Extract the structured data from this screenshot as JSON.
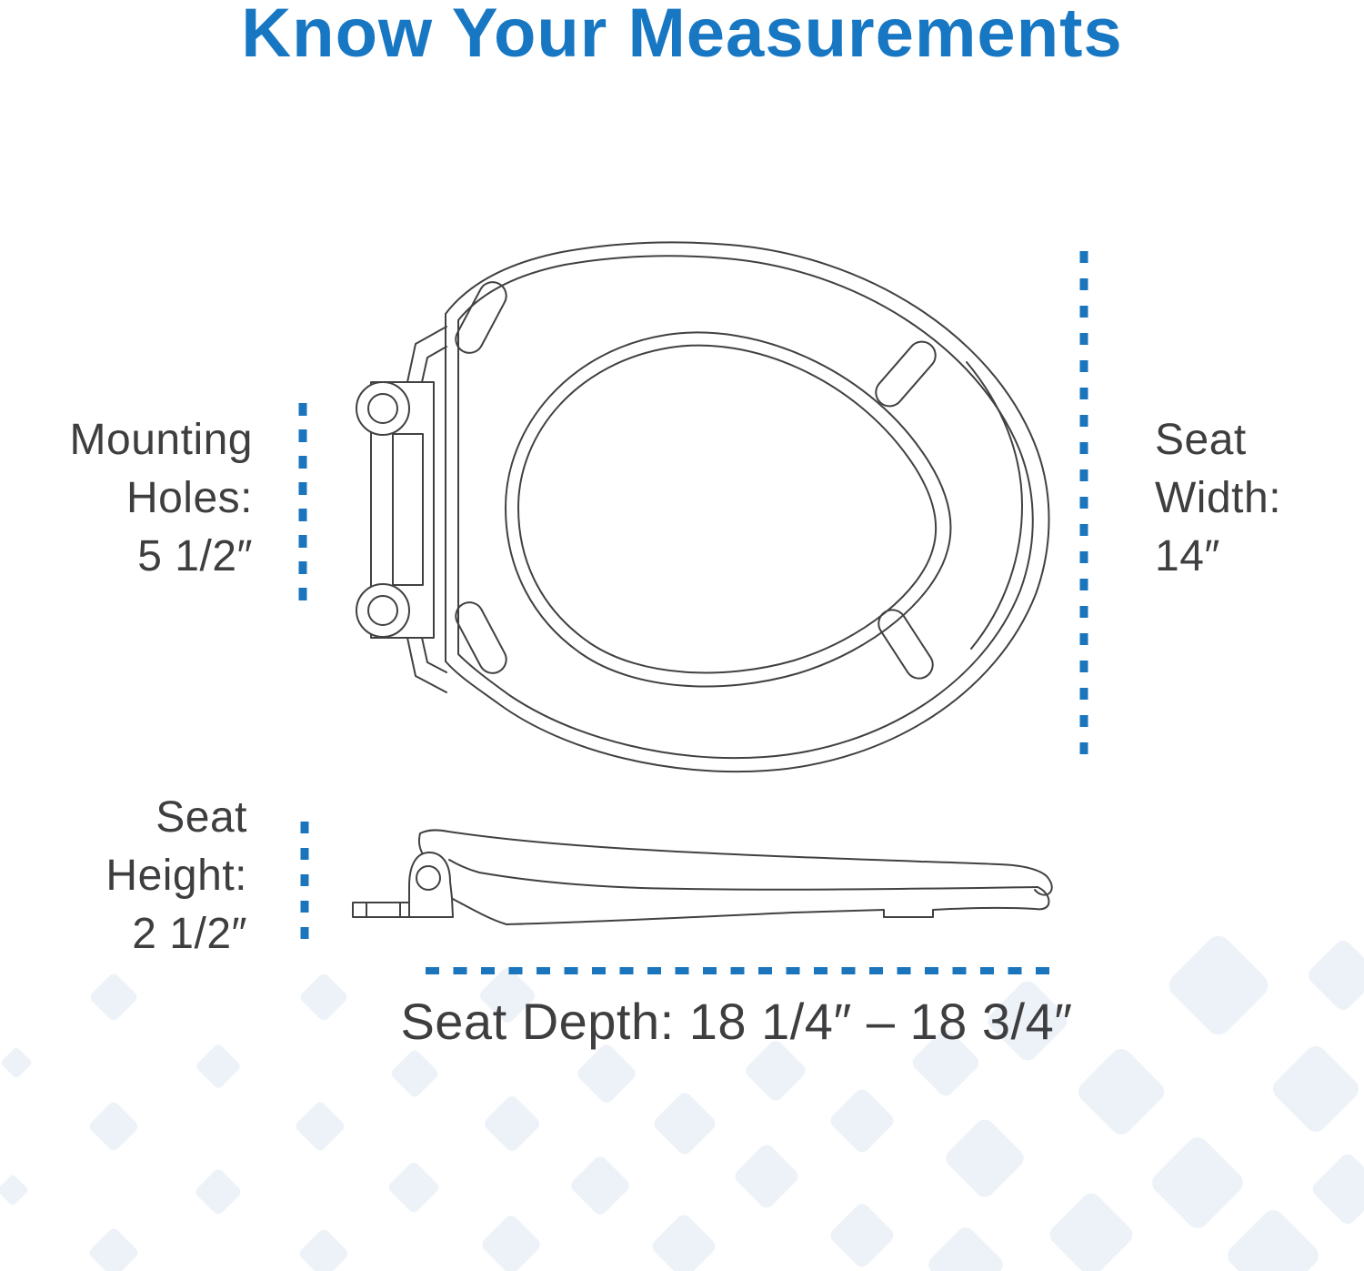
{
  "page": {
    "title": "Know Your Measurements"
  },
  "colors": {
    "title_blue": "#1777C3",
    "dimension_blue": "#1B75BC",
    "label_gray": "#3E3E40",
    "line_gray": "#414042",
    "diamond": "#EDF2F8"
  },
  "measurements": {
    "mounting_holes": {
      "label": "Mounting Holes:",
      "value": "5 1/2″",
      "lines": [
        "Mounting",
        "Holes:",
        "5 1/2″"
      ]
    },
    "seat_width": {
      "label": "Seat Width:",
      "value": "14″",
      "lines": [
        "Seat",
        "Width:",
        "14″"
      ]
    },
    "seat_height": {
      "label": "Seat Height:",
      "value": "2 1/2″",
      "lines": [
        "Seat",
        "Height:",
        "2 1/2″"
      ]
    },
    "seat_depth": {
      "label": "Seat Depth:",
      "value": "18 1/4″ – 18 3/4″",
      "text": "Seat Depth: 18 1/4″ – 18 3/4″"
    }
  }
}
